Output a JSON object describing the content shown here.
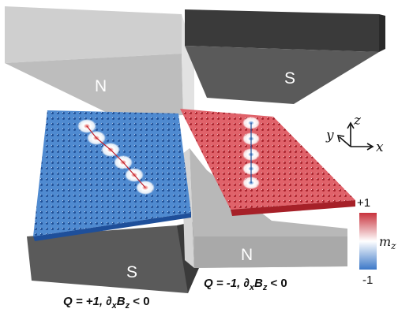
{
  "magnets": {
    "top_left_pole": "N",
    "top_right_pole": "S",
    "bottom_left_pole": "S",
    "bottom_right_pole": "N"
  },
  "axes": {
    "x": "x",
    "y": "y",
    "z": "z"
  },
  "colorbar": {
    "label_main": "m",
    "label_sub": "z",
    "max_label": "+1",
    "min_label": "-1"
  },
  "captions": {
    "left": {
      "q": "Q = +1, ",
      "deriv_d": "∂",
      "deriv_sub": "x",
      "deriv_b": "B",
      "deriv_bsub": "z",
      "rest": " < 0"
    },
    "right": {
      "q": "Q = -1, ",
      "deriv_d": "∂",
      "deriv_sub": "x",
      "deriv_b": "B",
      "deriv_bsub": "z",
      "rest": " < 0"
    }
  },
  "colors": {
    "magnet_light": "#c8c8c8",
    "magnet_dark": "#4a4a4a",
    "film_left": "#3a78c4",
    "film_right": "#d9434a",
    "colorbar_top": "#c8323c",
    "colorbar_bottom": "#3c78c8"
  }
}
